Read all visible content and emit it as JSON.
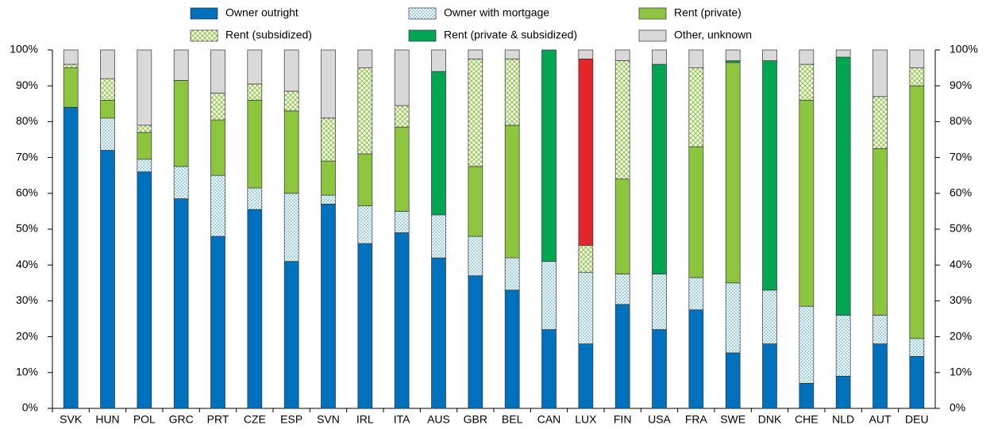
{
  "chart_data": {
    "type": "stacked-bar",
    "categories": [
      "SVK",
      "HUN",
      "POL",
      "GRC",
      "PRT",
      "CZE",
      "ESP",
      "SVN",
      "IRL",
      "ITA",
      "AUS",
      "GBR",
      "BEL",
      "CAN",
      "LUX",
      "FIN",
      "USA",
      "FRA",
      "SWE",
      "DNK",
      "CHE",
      "NLD",
      "AUT",
      "DEU"
    ],
    "series": [
      {
        "name": "Owner outright",
        "color": "#0071bc",
        "pattern": "solid",
        "values": [
          84,
          72,
          66,
          58.5,
          48,
          55.5,
          41,
          57,
          46,
          49,
          42,
          37,
          33,
          22,
          18,
          29,
          22,
          27.5,
          15.5,
          18,
          7,
          9,
          18,
          14.5
        ]
      },
      {
        "name": "Owner with mortgage",
        "color": "#4db3e6",
        "pattern": "dots",
        "values": [
          0,
          9,
          3.5,
          9,
          17,
          6,
          19,
          2.5,
          10.5,
          6,
          12,
          11,
          9,
          19,
          20,
          8.5,
          15.5,
          9,
          19.5,
          15,
          21.5,
          17,
          8,
          5
        ]
      },
      {
        "name": "Rent (private)",
        "color": "#8cc63f",
        "pattern": "solid",
        "values": [
          11,
          5,
          7.5,
          24,
          15.5,
          24.5,
          23,
          9.5,
          14.5,
          23.5,
          0,
          19.5,
          37,
          0,
          0,
          26.5,
          0,
          36.5,
          61.5,
          0,
          57.5,
          0,
          46.5,
          70.5
        ]
      },
      {
        "name": "Rent (subsidized)",
        "color": "#8cc63f",
        "pattern": "crosshatch",
        "values": [
          1,
          6,
          2,
          0,
          7.5,
          4.5,
          5.5,
          12,
          24,
          6,
          0,
          30,
          18.5,
          0,
          7.5,
          33,
          0,
          22,
          0,
          0,
          10,
          0,
          14.5,
          5
        ]
      },
      {
        "name": "Rent (private & subsidized)",
        "color": "#00a651",
        "pattern": "solid",
        "colors": [
          null,
          null,
          null,
          null,
          null,
          null,
          null,
          null,
          null,
          null,
          null,
          null,
          null,
          null,
          "#e2262a",
          null,
          null,
          null,
          null,
          null,
          null,
          null,
          null,
          null
        ],
        "values": [
          0,
          0,
          0,
          0,
          0,
          0,
          0,
          0,
          0,
          0,
          40,
          0,
          0,
          59,
          52,
          0,
          58.5,
          0,
          0.5,
          64,
          0,
          72,
          0,
          0
        ]
      },
      {
        "name": "Other, unknown",
        "color": "#d9d9d9",
        "pattern": "solid",
        "values": [
          4,
          8,
          21,
          8.5,
          12,
          9.5,
          11.5,
          19,
          5,
          15.5,
          6,
          2.5,
          2.5,
          0,
          2.5,
          3,
          4,
          5,
          3,
          3,
          4,
          2,
          13,
          5
        ]
      }
    ],
    "ylim": [
      0,
      100
    ],
    "yticks": [
      {
        "value": 0,
        "label": "0%"
      },
      {
        "value": 10,
        "label": "10%"
      },
      {
        "value": 20,
        "label": "20%"
      },
      {
        "value": 30,
        "label": "30%"
      },
      {
        "value": 40,
        "label": "40%"
      },
      {
        "value": 50,
        "label": "50%"
      },
      {
        "value": 60,
        "label": "60%"
      },
      {
        "value": 70,
        "label": "70%"
      },
      {
        "value": 80,
        "label": "80%"
      },
      {
        "value": 90,
        "label": "90%"
      },
      {
        "value": 100,
        "label": "100%"
      }
    ],
    "y2lim": [
      0,
      100
    ],
    "y2ticks": [
      {
        "value": 0,
        "label": "0%"
      },
      {
        "value": 10,
        "label": "10%"
      },
      {
        "value": 20,
        "label": "20%"
      },
      {
        "value": 30,
        "label": "30%"
      },
      {
        "value": 40,
        "label": "40%"
      },
      {
        "value": 50,
        "label": "50%"
      },
      {
        "value": 60,
        "label": "60%"
      },
      {
        "value": 70,
        "label": "70%"
      },
      {
        "value": 80,
        "label": "80%"
      },
      {
        "value": 90,
        "label": "90%"
      },
      {
        "value": 100,
        "label": "100%"
      }
    ],
    "grid": false
  }
}
